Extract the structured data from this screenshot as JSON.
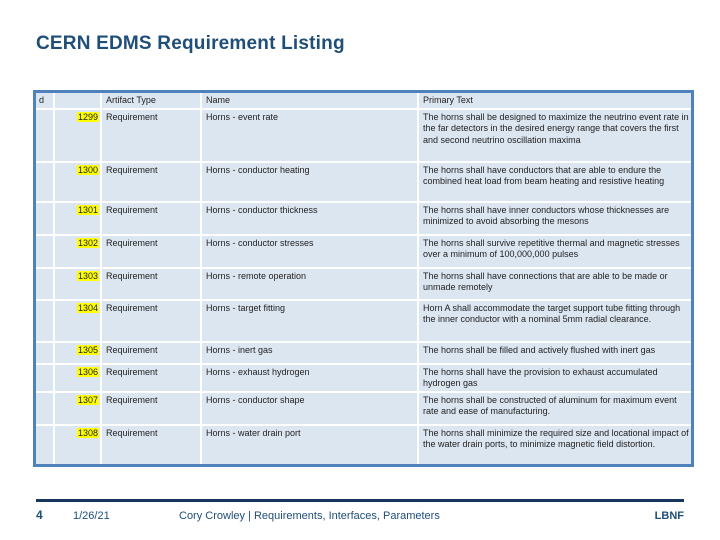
{
  "title": "CERN EDMS Requirement Listing",
  "table": {
    "columns": {
      "id": "d",
      "artifact_type": "Artifact Type",
      "name": "Name",
      "primary_text": "Primary Text"
    },
    "rows": [
      {
        "id": "1299",
        "artifact_type": "Requirement",
        "name": "Horns - event rate",
        "primary_text": "The horns shall be designed to maximize the neutrino event rate in the far detectors in the desired energy range that covers the first and second neutrino oscillation maxima"
      },
      {
        "id": "1300",
        "artifact_type": "Requirement",
        "name": "Horns - conductor heating",
        "primary_text": "The horns shall have conductors that are able to endure the combined heat load from beam heating and resistive heating"
      },
      {
        "id": "1301",
        "artifact_type": "Requirement",
        "name": "Horns - conductor thickness",
        "primary_text": "The horns shall have inner conductors whose thicknesses are minimized to avoid absorbing the mesons"
      },
      {
        "id": "1302",
        "artifact_type": "Requirement",
        "name": "Horns - conductor stresses",
        "primary_text": "The horns shall survive repetitive thermal and magnetic stresses over a minimum of 100,000,000 pulses"
      },
      {
        "id": "1303",
        "artifact_type": "Requirement",
        "name": "Horns - remote operation",
        "primary_text": "The horns shall have connections that are able to be made or unmade remotely"
      },
      {
        "id": "1304",
        "artifact_type": "Requirement",
        "name": "Horns - target fitting",
        "primary_text": "Horn A shall accommodate the target support tube fitting through the inner conductor with a nominal 5mm radial clearance."
      },
      {
        "id": "1305",
        "artifact_type": "Requirement",
        "name": "Horns - inert gas",
        "primary_text": "The horns shall be filled and actively flushed with inert gas"
      },
      {
        "id": "1306",
        "artifact_type": "Requirement",
        "name": "Horns - exhaust hydrogen",
        "primary_text": "The horns shall have the provision to exhaust accumulated hydrogen gas"
      },
      {
        "id": "1307",
        "artifact_type": "Requirement",
        "name": "Horns - conductor shape",
        "primary_text": "The horns shall be constructed of aluminum for maximum event rate and ease of manufacturing."
      },
      {
        "id": "1308",
        "artifact_type": "Requirement",
        "name": "Horns - water drain port",
        "primary_text": "The horns shall minimize the required size and locational impact of the water drain ports, to minimize magnetic field distortion."
      }
    ]
  },
  "footer": {
    "page_number": "4",
    "date": "1/26/21",
    "credit": "Cory Crowley | Requirements, Interfaces, Parameters",
    "brand": "LBNF"
  },
  "colors": {
    "title_navy": "#1f4e79",
    "table_border_blue": "#4f81bd",
    "row_background": "#dce6f1",
    "id_highlight_yellow": "#ffff00",
    "footer_rule_navy": "#17365d"
  }
}
